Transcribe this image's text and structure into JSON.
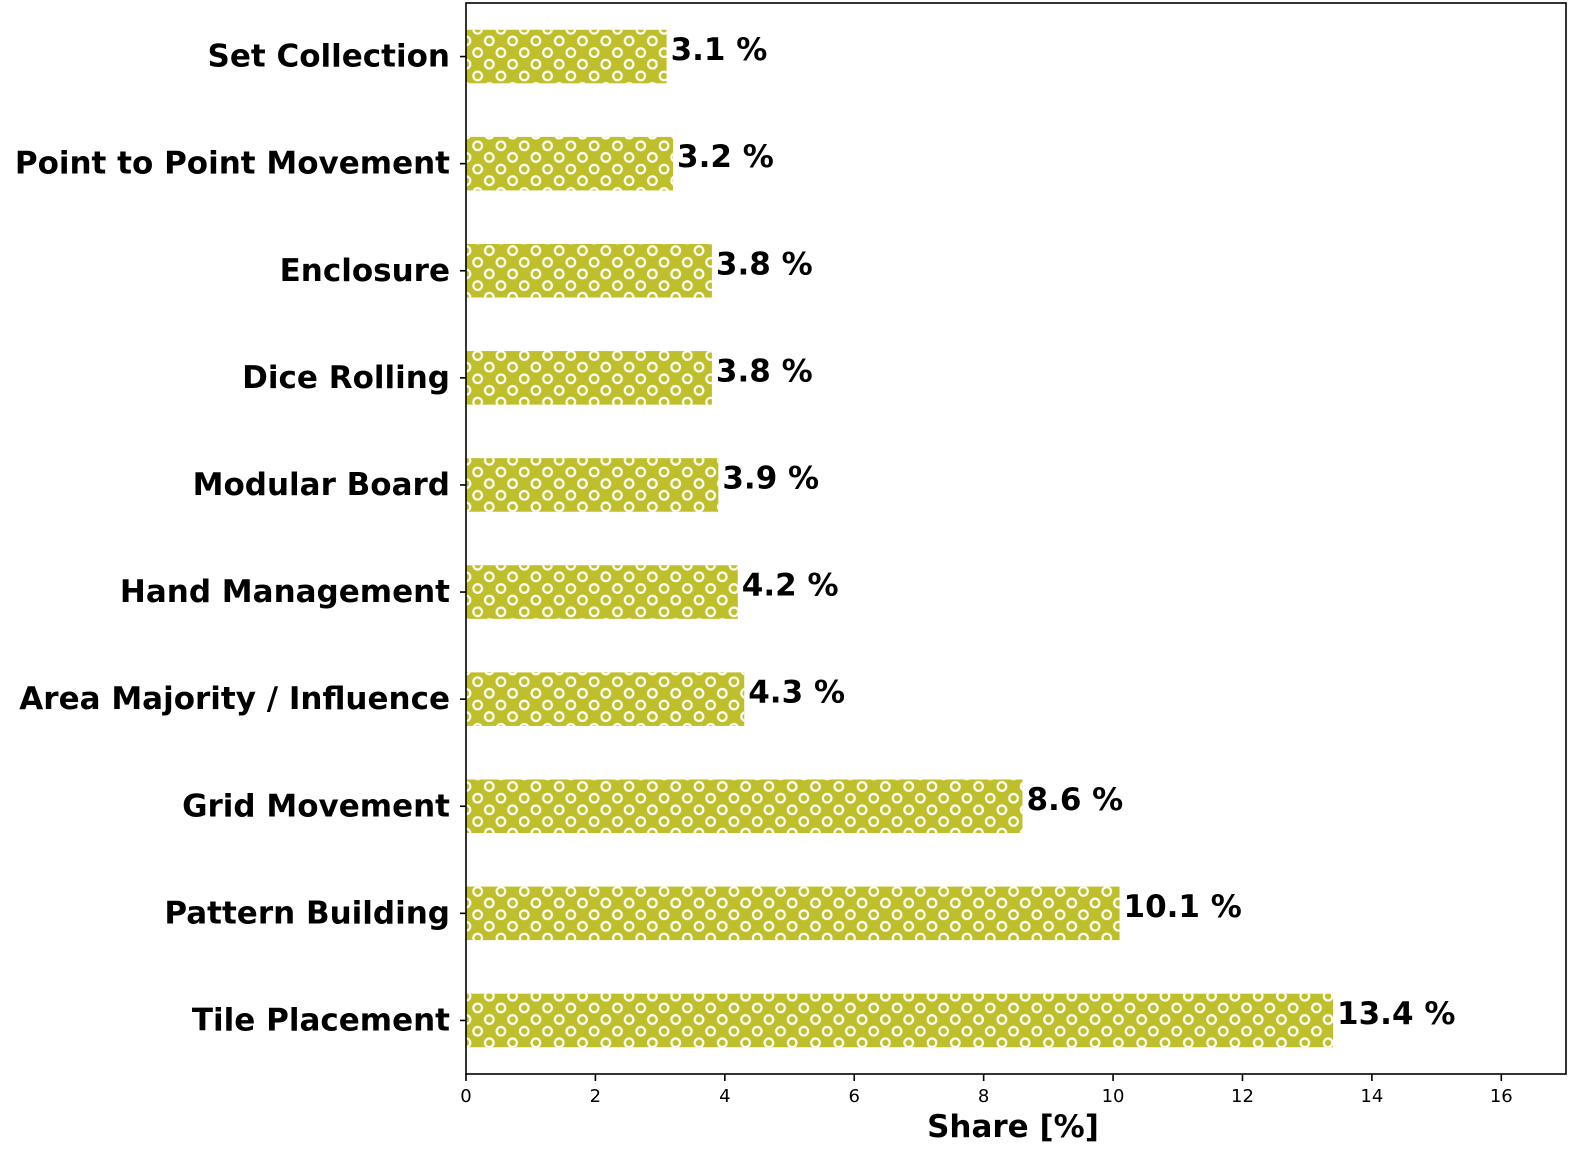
{
  "chart_data": {
    "type": "bar",
    "orientation": "horizontal",
    "categories": [
      "Set Collection",
      "Point to Point Movement",
      "Enclosure",
      "Dice Rolling",
      "Modular Board",
      "Hand Management",
      "Area Majority / Influence",
      "Grid Movement",
      "Pattern Building",
      "Tile Placement"
    ],
    "values": [
      3.1,
      3.2,
      3.8,
      3.8,
      3.9,
      4.2,
      4.3,
      8.6,
      10.1,
      13.4
    ],
    "value_labels": [
      "3.1 %",
      "3.2 %",
      "3.8 %",
      "3.8 %",
      "3.9 %",
      "4.2 %",
      "4.3 %",
      "8.6 %",
      "10.1 %",
      "13.4 %"
    ],
    "xlabel": "Share [%]",
    "xlim": [
      0,
      17
    ],
    "x_ticks": [
      "0",
      "2",
      "4",
      "6",
      "8",
      "10",
      "12",
      "14",
      "16"
    ],
    "grid": false,
    "legend": "none",
    "bar_color": "#bfbf2b",
    "bar_pattern": "white-circles"
  }
}
